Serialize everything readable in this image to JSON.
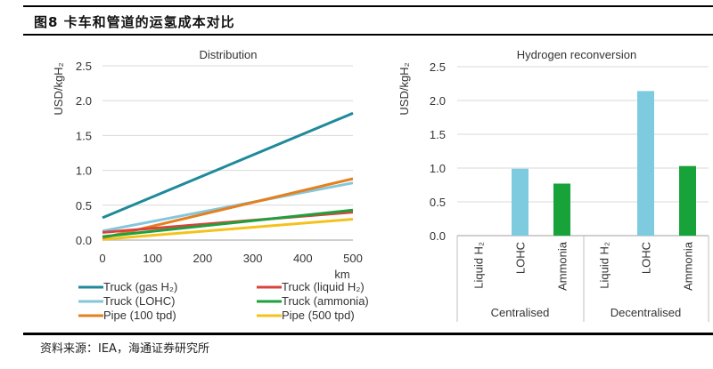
{
  "figure": {
    "title": "图8  卡车和管道的运氢成本对比",
    "source": "资料来源：IEA，海通证券研究所"
  },
  "colors": {
    "truck_gas": "#1f8a9a",
    "truck_liquid": "#d9433c",
    "truck_lohc": "#86c6dc",
    "truck_ammonia": "#1fa03c",
    "pipe_100": "#e5801e",
    "pipe_500": "#f5c21c",
    "bar_lohc": "#7ecbe0",
    "bar_ammonia": "#17a33a",
    "grid": "#d9d9d9"
  },
  "chart_data": [
    {
      "type": "line",
      "title": "Distribution",
      "xlabel": "km",
      "ylabel": "USD/kgH₂",
      "xlim": [
        0,
        500
      ],
      "ylim": [
        0,
        2.5
      ],
      "x_ticks": [
        "0",
        "100",
        "200",
        "300",
        "400",
        "500"
      ],
      "y_ticks": [
        "0.0",
        "0.5",
        "1.0",
        "1.5",
        "2.0",
        "2.5"
      ],
      "grid": true,
      "legend_position": "bottom",
      "x": [
        0,
        500
      ],
      "series": [
        {
          "name": "Truck (gas H₂)",
          "color_key": "truck_gas",
          "values": [
            0.32,
            1.82
          ]
        },
        {
          "name": "Truck (liquid H₂)",
          "color_key": "truck_liquid",
          "values": [
            0.11,
            0.4
          ]
        },
        {
          "name": "Truck (LOHC)",
          "color_key": "truck_lohc",
          "values": [
            0.13,
            0.82
          ]
        },
        {
          "name": "Truck (ammonia)",
          "color_key": "truck_ammonia",
          "values": [
            0.05,
            0.43
          ]
        },
        {
          "name": "Pipe (100 tpd)",
          "color_key": "pipe_100",
          "values": [
            0.03,
            0.88
          ]
        },
        {
          "name": "Pipe (500 tpd)",
          "color_key": "pipe_500",
          "values": [
            0.01,
            0.3
          ]
        }
      ]
    },
    {
      "type": "bar",
      "title": "Hydrogen reconversion",
      "ylabel": "USD/kgH₂",
      "ylim": [
        0,
        2.5
      ],
      "y_ticks": [
        "0.0",
        "0.5",
        "1.0",
        "1.5",
        "2.0",
        "2.5"
      ],
      "grid": true,
      "groups": [
        {
          "name": "Centralised",
          "categories": [
            "Liquid H₂",
            "LOHC",
            "Ammonia"
          ],
          "values": [
            0,
            0.99,
            0.77
          ]
        },
        {
          "name": "Decentralised",
          "categories": [
            "Liquid H₂",
            "LOHC",
            "Ammonia"
          ],
          "values": [
            0,
            2.14,
            1.03
          ]
        }
      ]
    }
  ]
}
